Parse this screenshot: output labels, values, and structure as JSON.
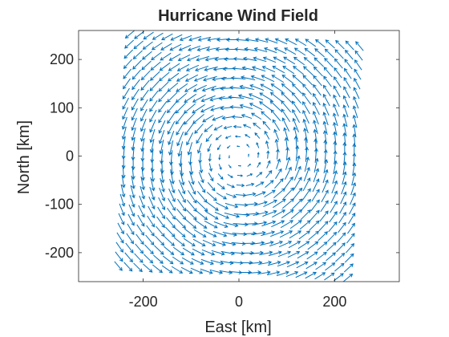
{
  "chart_data": {
    "type": "quiver",
    "title": "Hurricane Wind Field",
    "xlabel": "East [km]",
    "ylabel": "North [km]",
    "xlim": [
      -335,
      335
    ],
    "ylim": [
      -260,
      260
    ],
    "xticks": [
      -200,
      0,
      200
    ],
    "yticks": [
      -200,
      -100,
      0,
      100,
      200
    ],
    "grid": false,
    "arrow_color": "#0072BD",
    "field": {
      "description_values": "counterclockwise vortex centered at origin",
      "x_start": -240,
      "x_end": 240,
      "y_start": -240,
      "y_end": 240,
      "step": 20,
      "rotation_deg": -5,
      "center": [
        0,
        0
      ],
      "max_speed_radius_km": 120,
      "max_speed": 1.0
    }
  }
}
